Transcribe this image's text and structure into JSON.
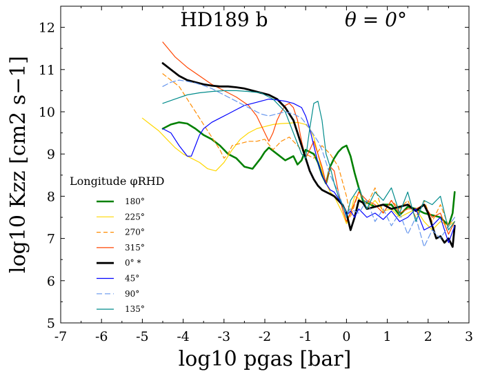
{
  "chart_data": {
    "type": "line",
    "title": "HD189 b",
    "annotation": "θ = 0°",
    "xlabel": "log10 pgas [bar]",
    "ylabel": "log10 Kzz [cm2 s−1]",
    "xlim": [
      -7,
      3
    ],
    "ylim": [
      5,
      12.5
    ],
    "xticks": [
      "-7",
      "-6",
      "-5",
      "-4",
      "-3",
      "-2",
      "-1",
      "0",
      "1",
      "2",
      "3"
    ],
    "yticks": [
      "5",
      "6",
      "7",
      "8",
      "9",
      "10",
      "11",
      "12"
    ],
    "legend": {
      "title": "Longitude φRHD",
      "position": "lower-left"
    },
    "series": [
      {
        "name": "180°",
        "color": "#008000",
        "width": 2.6,
        "dash": "",
        "x": [
          -4.5,
          -4.3,
          -4.1,
          -3.9,
          -3.7,
          -3.5,
          -3.3,
          -3.1,
          -2.9,
          -2.7,
          -2.5,
          -2.3,
          -2.1,
          -2.0,
          -1.9,
          -1.7,
          -1.5,
          -1.3,
          -1.2,
          -1.1,
          -1.0,
          -0.9,
          -0.8,
          -0.7,
          -0.6,
          -0.5,
          -0.4,
          -0.3,
          -0.2,
          -0.1,
          0.0,
          0.1,
          0.2,
          0.3,
          0.4,
          0.5,
          0.7,
          0.9,
          1.1,
          1.3,
          1.5,
          1.7,
          1.9,
          2.1,
          2.3,
          2.5,
          2.6,
          2.65
        ],
        "y": [
          9.6,
          9.7,
          9.75,
          9.72,
          9.6,
          9.45,
          9.35,
          9.2,
          9.0,
          8.9,
          8.7,
          8.65,
          8.9,
          9.05,
          9.15,
          9.0,
          8.85,
          8.95,
          8.75,
          8.85,
          9.1,
          9.05,
          9.0,
          8.8,
          8.5,
          8.3,
          8.7,
          8.9,
          9.05,
          9.15,
          9.2,
          8.95,
          8.55,
          8.2,
          7.9,
          7.85,
          7.75,
          7.8,
          7.8,
          7.55,
          7.75,
          7.7,
          7.6,
          7.55,
          7.5,
          7.3,
          7.6,
          8.1
        ]
      },
      {
        "name": "225°",
        "color": "#FFD700",
        "width": 1.2,
        "dash": "",
        "x": [
          -5.0,
          -4.8,
          -4.6,
          -4.4,
          -4.2,
          -4.0,
          -3.8,
          -3.6,
          -3.4,
          -3.2,
          -3.0,
          -2.8,
          -2.6,
          -2.4,
          -2.2,
          -2.0,
          -1.8,
          -1.6,
          -1.4,
          -1.2,
          -1.0,
          -0.9,
          -0.8,
          -0.7,
          -0.6,
          -0.5,
          -0.4,
          -0.3,
          -0.2,
          -0.1,
          0.0,
          0.1,
          0.2,
          0.3,
          0.5,
          0.7,
          0.9,
          1.1,
          1.3,
          1.5,
          1.7,
          1.9,
          2.1,
          2.3,
          2.5,
          2.65
        ],
        "y": [
          9.85,
          9.7,
          9.55,
          9.35,
          9.15,
          9.0,
          8.9,
          8.8,
          8.65,
          8.6,
          8.8,
          9.1,
          9.35,
          9.5,
          9.6,
          9.65,
          9.7,
          9.72,
          9.73,
          9.75,
          9.7,
          9.6,
          9.4,
          9.0,
          8.6,
          8.3,
          8.1,
          8.0,
          7.8,
          7.6,
          7.35,
          7.6,
          8.0,
          7.95,
          7.7,
          7.9,
          7.65,
          7.7,
          7.5,
          7.6,
          7.7,
          7.4,
          7.2,
          7.4,
          7.3,
          7.4
        ]
      },
      {
        "name": "270°",
        "color": "#FF8C00",
        "width": 1.2,
        "dash": "6,4",
        "x": [
          -4.5,
          -4.3,
          -4.1,
          -3.9,
          -3.7,
          -3.5,
          -3.3,
          -3.1,
          -3.0,
          -2.9,
          -2.8,
          -2.6,
          -2.4,
          -2.2,
          -2.0,
          -1.8,
          -1.6,
          -1.4,
          -1.2,
          -1.0,
          -0.8,
          -0.6,
          -0.4,
          -0.2,
          0.0,
          0.1,
          0.2,
          0.3,
          0.5,
          0.7,
          0.9,
          1.1,
          1.3,
          1.5,
          1.7,
          1.9,
          2.1,
          2.3,
          2.5,
          2.65
        ],
        "y": [
          10.9,
          10.75,
          10.6,
          10.3,
          10.0,
          9.7,
          9.4,
          9.1,
          8.9,
          9.0,
          9.2,
          9.25,
          9.3,
          9.3,
          9.35,
          9.1,
          9.3,
          9.4,
          9.2,
          9.0,
          8.9,
          9.2,
          9.0,
          8.7,
          8.0,
          7.5,
          7.8,
          8.1,
          7.8,
          8.2,
          7.6,
          7.9,
          7.7,
          7.9,
          7.5,
          7.9,
          7.4,
          7.8,
          7.3,
          7.5
        ]
      },
      {
        "name": "315°",
        "color": "#FF4500",
        "width": 1.2,
        "dash": "",
        "x": [
          -4.5,
          -4.2,
          -3.9,
          -3.6,
          -3.3,
          -3.0,
          -2.7,
          -2.4,
          -2.2,
          -2.0,
          -1.9,
          -1.8,
          -1.7,
          -1.6,
          -1.5,
          -1.4,
          -1.3,
          -1.2,
          -1.1,
          -1.0,
          -0.9,
          -0.8,
          -0.7,
          -0.6,
          -0.5,
          -0.4,
          -0.3,
          -0.2,
          -0.1,
          0.0,
          0.1,
          0.3,
          0.5,
          0.7,
          0.9,
          1.1,
          1.3,
          1.5,
          1.7,
          1.9,
          2.1,
          2.3,
          2.5,
          2.65
        ],
        "y": [
          11.65,
          11.3,
          11.05,
          10.85,
          10.65,
          10.5,
          10.35,
          10.15,
          9.9,
          9.5,
          9.3,
          9.5,
          9.8,
          10.0,
          10.15,
          10.2,
          10.1,
          9.8,
          9.3,
          8.9,
          9.1,
          9.3,
          9.0,
          8.7,
          8.3,
          8.7,
          8.6,
          8.1,
          7.7,
          7.4,
          7.6,
          8.1,
          7.9,
          7.8,
          7.6,
          7.9,
          7.6,
          7.7,
          7.7,
          7.8,
          7.5,
          7.6,
          7.1,
          7.4
        ]
      },
      {
        "name": "0° *",
        "color": "#000000",
        "width": 2.8,
        "dash": "",
        "x": [
          -4.5,
          -4.3,
          -4.1,
          -3.9,
          -3.7,
          -3.5,
          -3.3,
          -3.1,
          -2.9,
          -2.7,
          -2.5,
          -2.3,
          -2.1,
          -1.9,
          -1.7,
          -1.5,
          -1.3,
          -1.2,
          -1.1,
          -1.0,
          -0.9,
          -0.8,
          -0.7,
          -0.6,
          -0.5,
          -0.4,
          -0.3,
          -0.2,
          -0.1,
          0.0,
          0.1,
          0.2,
          0.3,
          0.4,
          0.5,
          0.7,
          0.9,
          1.1,
          1.3,
          1.5,
          1.7,
          1.9,
          2.0,
          2.1,
          2.2,
          2.3,
          2.4,
          2.5,
          2.6,
          2.65
        ],
        "y": [
          11.15,
          11.0,
          10.85,
          10.75,
          10.7,
          10.65,
          10.62,
          10.6,
          10.6,
          10.58,
          10.55,
          10.5,
          10.45,
          10.4,
          10.3,
          10.1,
          9.8,
          9.5,
          9.2,
          8.9,
          8.6,
          8.4,
          8.25,
          8.15,
          8.1,
          8.05,
          8.0,
          7.9,
          7.8,
          7.6,
          7.2,
          7.5,
          7.9,
          7.85,
          7.7,
          7.75,
          7.8,
          7.7,
          7.75,
          7.8,
          7.65,
          7.8,
          7.6,
          7.3,
          7.0,
          7.05,
          6.9,
          7.0,
          6.8,
          7.3
        ]
      },
      {
        "name": "45°",
        "color": "#0000FF",
        "width": 1.2,
        "dash": "",
        "x": [
          -4.5,
          -4.3,
          -4.1,
          -3.9,
          -3.8,
          -3.7,
          -3.6,
          -3.5,
          -3.3,
          -3.1,
          -2.9,
          -2.7,
          -2.5,
          -2.3,
          -2.1,
          -1.9,
          -1.7,
          -1.5,
          -1.3,
          -1.1,
          -1.0,
          -0.9,
          -0.8,
          -0.7,
          -0.6,
          -0.5,
          -0.4,
          -0.3,
          -0.2,
          -0.1,
          0.0,
          0.1,
          0.2,
          0.3,
          0.5,
          0.7,
          0.9,
          1.1,
          1.3,
          1.5,
          1.7,
          1.9,
          2.1,
          2.3,
          2.5,
          2.65
        ],
        "y": [
          9.6,
          9.5,
          9.2,
          8.95,
          8.95,
          9.2,
          9.45,
          9.6,
          9.75,
          9.85,
          9.95,
          10.05,
          10.15,
          10.2,
          10.25,
          10.3,
          10.28,
          10.25,
          10.2,
          10.1,
          9.9,
          9.6,
          9.2,
          8.8,
          8.5,
          8.3,
          8.15,
          8.1,
          7.95,
          7.8,
          7.55,
          7.65,
          7.5,
          7.7,
          7.5,
          7.6,
          7.45,
          7.65,
          7.4,
          7.5,
          7.7,
          7.2,
          7.3,
          7.5,
          6.9,
          7.3
        ]
      },
      {
        "name": "90°",
        "color": "#6495ED",
        "width": 1.2,
        "dash": "8,4",
        "x": [
          -4.5,
          -4.3,
          -4.1,
          -3.9,
          -3.7,
          -3.5,
          -3.3,
          -3.1,
          -2.9,
          -2.7,
          -2.5,
          -2.3,
          -2.1,
          -1.9,
          -1.7,
          -1.5,
          -1.3,
          -1.1,
          -0.9,
          -0.7,
          -0.6,
          -0.5,
          -0.4,
          -0.3,
          -0.2,
          -0.1,
          0.0,
          0.1,
          0.3,
          0.5,
          0.7,
          0.9,
          1.1,
          1.3,
          1.5,
          1.7,
          1.9,
          2.1,
          2.3,
          2.5,
          2.65
        ],
        "y": [
          10.6,
          10.7,
          10.75,
          10.72,
          10.68,
          10.62,
          10.55,
          10.45,
          10.35,
          10.25,
          10.15,
          10.05,
          9.95,
          9.9,
          9.95,
          10.0,
          9.95,
          9.85,
          9.6,
          9.3,
          9.1,
          8.8,
          8.5,
          8.3,
          8.1,
          7.8,
          7.6,
          7.7,
          7.6,
          7.9,
          7.4,
          7.7,
          7.3,
          7.6,
          7.1,
          7.5,
          6.8,
          7.2,
          7.0,
          7.3,
          7.5
        ]
      },
      {
        "name": "135°",
        "color": "#008B8B",
        "width": 1.2,
        "dash": "",
        "x": [
          -4.5,
          -4.2,
          -3.9,
          -3.6,
          -3.3,
          -3.0,
          -2.7,
          -2.4,
          -2.1,
          -1.8,
          -1.5,
          -1.3,
          -1.1,
          -1.0,
          -0.9,
          -0.8,
          -0.7,
          -0.6,
          -0.5,
          -0.4,
          -0.3,
          -0.2,
          -0.1,
          0.0,
          0.1,
          0.3,
          0.5,
          0.7,
          0.9,
          1.1,
          1.3,
          1.5,
          1.7,
          1.9,
          2.1,
          2.3,
          2.5,
          2.65
        ],
        "y": [
          10.2,
          10.3,
          10.4,
          10.45,
          10.48,
          10.5,
          10.5,
          10.48,
          10.45,
          10.3,
          10.0,
          9.5,
          9.0,
          8.9,
          9.6,
          10.2,
          10.25,
          9.8,
          9.0,
          8.7,
          8.3,
          8.0,
          7.8,
          7.5,
          7.9,
          8.2,
          7.7,
          8.1,
          7.9,
          8.2,
          7.6,
          8.1,
          7.4,
          7.9,
          7.8,
          8.0,
          7.2,
          7.4
        ]
      }
    ]
  }
}
